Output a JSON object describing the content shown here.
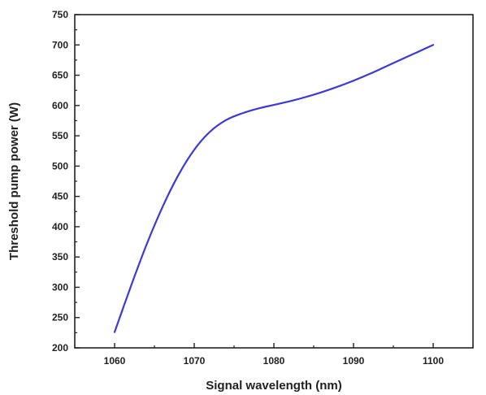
{
  "chart_data": {
    "type": "line",
    "title": "",
    "xlabel": "Signal wavelength (nm)",
    "ylabel": "Threshold pump power (W)",
    "xlim": [
      1055,
      1105
    ],
    "ylim": [
      200,
      750
    ],
    "xticks": [
      1060,
      1070,
      1080,
      1090,
      1100
    ],
    "yticks": [
      200,
      250,
      300,
      350,
      400,
      450,
      500,
      550,
      600,
      650,
      700,
      750
    ],
    "grid": false,
    "legend": "none",
    "series": [
      {
        "color": "#3a3ad6",
        "x": [
          1060,
          1062,
          1064,
          1066,
          1068,
          1070,
          1072,
          1074,
          1076,
          1078,
          1080,
          1082,
          1084,
          1086,
          1088,
          1090,
          1092,
          1094,
          1096,
          1098,
          1100
        ],
        "y": [
          226,
          300,
          370,
          432,
          485,
          527,
          557,
          576,
          587,
          595,
          601,
          607,
          614,
          622,
          631,
          641,
          652,
          664,
          676,
          688,
          700
        ]
      }
    ]
  }
}
